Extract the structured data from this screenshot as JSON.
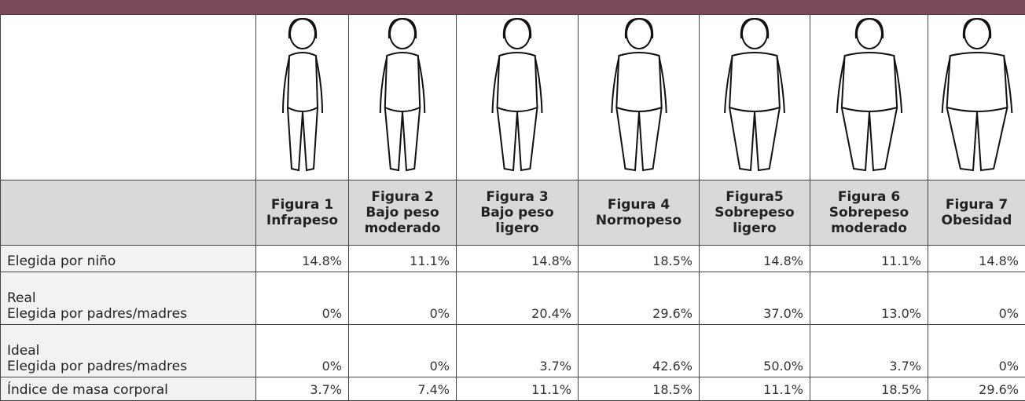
{
  "table": {
    "header": [
      "Figura 1\nInfrapeso",
      "Figura 2\nBajo peso\nmoderado",
      "Figura 3\nBajo peso\nligero",
      "Figura 4\nNormopeso",
      "Figura5\nSobrepeso\nligero",
      "Figura 6\nSobrepeso\nmoderado",
      "Figura 7\nObesidad"
    ],
    "rows": [
      [
        "Elegida por niño",
        "14.8%",
        "11.1%",
        "14.8%",
        "18.5%",
        "14.8%",
        "11.1%",
        "14.8%"
      ],
      [
        "Real\nElegida por padres/madres",
        "0%",
        "0%",
        "20.4%",
        "29.6%",
        "37.0%",
        "13.0%",
        "0%"
      ],
      [
        "Ideal\nElegida por padres/madres",
        "0%",
        "0%",
        "3.7%",
        "42.6%",
        "50.0%",
        "3.7%",
        "0%"
      ],
      [
        "Índice de masa corporal",
        "3.7%",
        "7.4%",
        "11.1%",
        "18.5%",
        "11.1%",
        "18.5%",
        "29.6%"
      ]
    ]
  }
}
